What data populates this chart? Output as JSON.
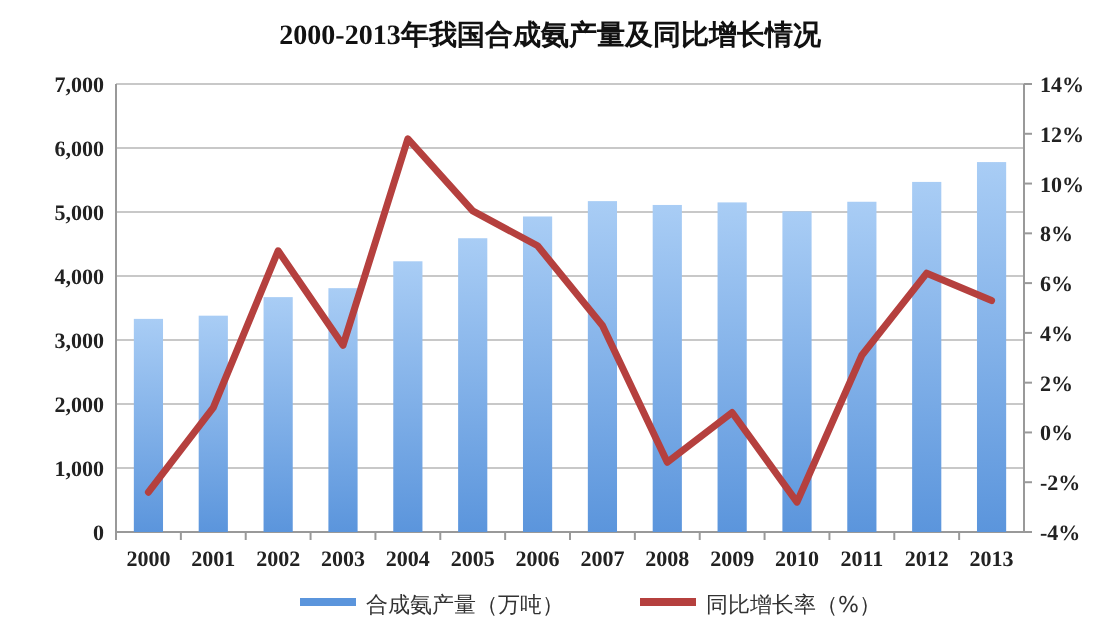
{
  "chart_data": {
    "type": "bar",
    "title": "2000-2013年我国合成氨产量及同比增长情况",
    "categories": [
      "2000",
      "2001",
      "2002",
      "2003",
      "2004",
      "2005",
      "2006",
      "2007",
      "2008",
      "2009",
      "2010",
      "2011",
      "2012",
      "2013"
    ],
    "series": [
      {
        "name": "合成氨产量（万吨）",
        "color": "#5b95dc",
        "values": [
          3330,
          3380,
          3670,
          3810,
          4230,
          4590,
          4930,
          5170,
          5110,
          5150,
          5010,
          5160,
          5470,
          5780
        ]
      },
      {
        "name": "同比增长率（%）",
        "type": "line",
        "axis": "y2",
        "color": "#b5403e",
        "values": [
          -2.4,
          1.0,
          7.3,
          3.5,
          11.8,
          8.9,
          7.5,
          4.3,
          -1.2,
          0.8,
          -2.8,
          3.1,
          6.4,
          5.3
        ]
      }
    ],
    "ylim": [
      0,
      7000
    ],
    "yticks": [
      {
        "value": 0,
        "label": "0"
      },
      {
        "value": 1000,
        "label": "1,000"
      },
      {
        "value": 2000,
        "label": "2,000"
      },
      {
        "value": 3000,
        "label": "3,000"
      },
      {
        "value": 4000,
        "label": "4,000"
      },
      {
        "value": 5000,
        "label": "5,000"
      },
      {
        "value": 6000,
        "label": "6,000"
      },
      {
        "value": 7000,
        "label": "7,000"
      }
    ],
    "y2lim": [
      -4,
      14
    ],
    "y2ticks": [
      {
        "value": -4,
        "label": "-4%"
      },
      {
        "value": -2,
        "label": "-2%"
      },
      {
        "value": 0,
        "label": "0%"
      },
      {
        "value": 2,
        "label": "2%"
      },
      {
        "value": 4,
        "label": "4%"
      },
      {
        "value": 6,
        "label": "6%"
      },
      {
        "value": 8,
        "label": "8%"
      },
      {
        "value": 10,
        "label": "10%"
      },
      {
        "value": 12,
        "label": "12%"
      },
      {
        "value": 14,
        "label": "14%"
      }
    ],
    "grid": "y",
    "legend": "bottom",
    "marker": "none",
    "line_style": "solid"
  }
}
